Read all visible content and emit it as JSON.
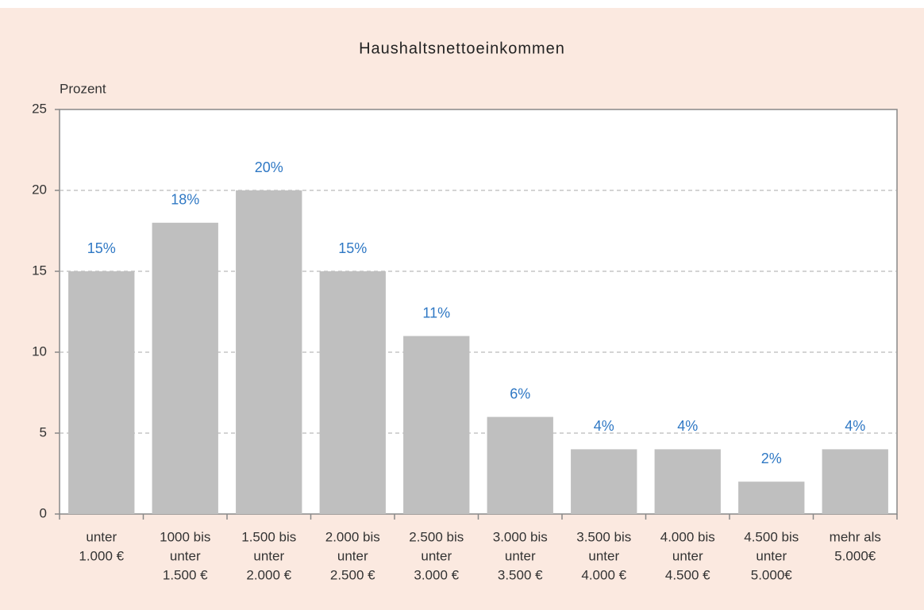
{
  "chart_data": {
    "type": "bar",
    "title": "Haushaltsnettoeinkommen",
    "y_label": "Prozent",
    "categories": [
      [
        "unter",
        "1.000 €"
      ],
      [
        "1000 bis",
        "unter",
        "1.500 €"
      ],
      [
        "1.500 bis",
        "unter",
        "2.000 €"
      ],
      [
        "2.000 bis",
        "unter",
        "2.500 €"
      ],
      [
        "2.500 bis",
        "unter",
        "3.000 €"
      ],
      [
        "3.000 bis",
        "unter",
        "3.500 €"
      ],
      [
        "3.500 bis",
        "unter",
        "4.000 €"
      ],
      [
        "4.000 bis",
        "unter",
        "4.500 €"
      ],
      [
        "4.500 bis",
        "unter",
        "5.000€"
      ],
      [
        "mehr als",
        "5.000€"
      ]
    ],
    "values": [
      15,
      18,
      20,
      15,
      11,
      6,
      4,
      4,
      2,
      4
    ],
    "value_labels": [
      "15%",
      "18%",
      "20%",
      "15%",
      "11%",
      "6%",
      "4%",
      "4%",
      "2%",
      "4%"
    ],
    "color": "#bfbfbf",
    "ylim": [
      0,
      25
    ],
    "yticks": [
      0,
      5,
      10,
      15,
      20,
      25
    ],
    "grid": true
  }
}
